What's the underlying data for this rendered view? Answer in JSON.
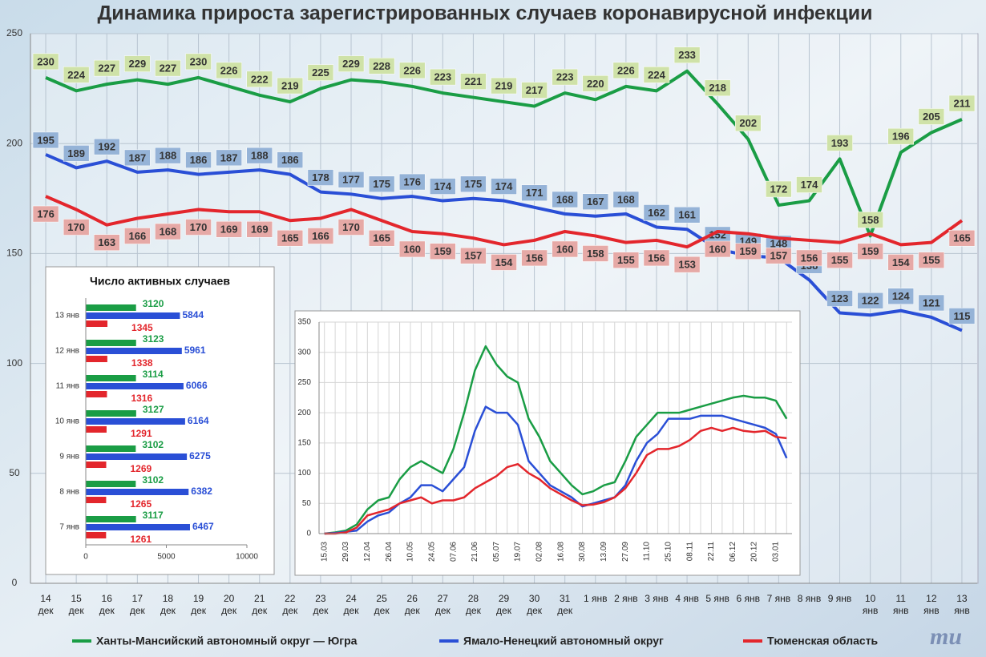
{
  "chart_data": [
    {
      "type": "line",
      "title": "Динамика прироста зарегистрированных случаев коронавирусной инфекции",
      "categories": [
        "14 дек",
        "15 дек",
        "16 дек",
        "17 дек",
        "18 дек",
        "19 дек",
        "20 дек",
        "21 дек",
        "22 дек",
        "23 дек",
        "24 дек",
        "25 дек",
        "26 дек",
        "27 дек",
        "28 дек",
        "29 дек",
        "30 дек",
        "31 дек",
        "1 янв",
        "2 янв",
        "3 янв",
        "4 янв",
        "5 янв",
        "6 янв",
        "7 янв",
        "8 янв",
        "9 янв",
        "10 янв",
        "11 янв",
        "12 янв",
        "13 янв"
      ],
      "series": [
        {
          "name": "Ханты-Мансийский автономный округ — Югра",
          "color": "#1a9d45",
          "values": [
            230,
            224,
            227,
            229,
            227,
            230,
            226,
            222,
            219,
            225,
            229,
            228,
            226,
            223,
            221,
            219,
            217,
            223,
            220,
            226,
            224,
            233,
            218,
            202,
            172,
            174,
            193,
            158,
            196,
            205,
            211
          ]
        },
        {
          "name": "Ямало-Ненецкий автономный округ",
          "color": "#2a4fd6",
          "values": [
            195,
            189,
            192,
            187,
            188,
            186,
            187,
            188,
            186,
            178,
            177,
            175,
            176,
            174,
            175,
            174,
            171,
            168,
            167,
            168,
            162,
            161,
            152,
            149,
            148,
            138,
            123,
            122,
            124,
            121,
            115
          ]
        },
        {
          "name": "Тюменская область",
          "color": "#e3262c",
          "values": [
            176,
            170,
            163,
            166,
            168,
            170,
            169,
            169,
            165,
            166,
            170,
            165,
            160,
            159,
            157,
            154,
            156,
            160,
            158,
            155,
            156,
            153,
            160,
            159,
            157,
            156,
            155,
            159,
            154,
            155,
            165
          ]
        }
      ],
      "ylim": [
        0,
        250
      ],
      "yticks": [
        0,
        50,
        100,
        150,
        200,
        250
      ],
      "grid": true,
      "legend": "bottom",
      "logo": "mu"
    },
    {
      "type": "hbar",
      "title": "Число активных случаев",
      "categories": [
        "13 янв",
        "12 янв",
        "11 янв",
        "10 янв",
        "9 янв",
        "8 янв",
        "7 янв"
      ],
      "series": [
        {
          "color": "#1a9d45",
          "values": [
            3120,
            3123,
            3114,
            3127,
            3102,
            3102,
            3117
          ]
        },
        {
          "color": "#2a4fd6",
          "values": [
            5844,
            5961,
            6066,
            6164,
            6275,
            6382,
            6467
          ]
        },
        {
          "color": "#e3262c",
          "values": [
            1345,
            1338,
            1316,
            1291,
            1269,
            1265,
            1261
          ]
        }
      ],
      "xlim": [
        0,
        10000
      ],
      "xticks": [
        0,
        5000,
        10000
      ]
    },
    {
      "type": "line",
      "categories": [
        "15.03",
        null,
        "29.03",
        null,
        "12.04",
        null,
        "26.04",
        null,
        "10.05",
        null,
        "24.05",
        null,
        "07.06",
        null,
        "21.06",
        null,
        "05.07",
        null,
        "19.07",
        null,
        "02.08",
        null,
        "16.08",
        null,
        "30.08",
        null,
        "13.09",
        null,
        "27.09",
        null,
        "11.10",
        null,
        "25.10",
        null,
        "08.11",
        null,
        "22.11",
        null,
        "06.12",
        null,
        "20.12",
        null,
        "03.01",
        null
      ],
      "series": [
        {
          "color": "#1a9d45",
          "values": [
            0,
            2,
            5,
            15,
            40,
            55,
            60,
            90,
            110,
            120,
            110,
            100,
            140,
            200,
            270,
            310,
            280,
            260,
            250,
            190,
            160,
            120,
            100,
            80,
            65,
            70,
            80,
            85,
            120,
            160,
            180,
            200,
            200,
            200,
            205,
            210,
            215,
            220,
            225,
            228,
            225,
            225,
            220,
            190
          ]
        },
        {
          "color": "#2a4fd6",
          "values": [
            0,
            1,
            3,
            5,
            20,
            30,
            35,
            50,
            60,
            80,
            80,
            70,
            90,
            110,
            170,
            210,
            200,
            200,
            180,
            120,
            100,
            80,
            70,
            60,
            45,
            50,
            55,
            60,
            80,
            120,
            150,
            165,
            190,
            190,
            190,
            195,
            195,
            195,
            190,
            185,
            180,
            175,
            165,
            125
          ]
        },
        {
          "color": "#e3262c",
          "values": [
            0,
            0,
            2,
            10,
            30,
            35,
            40,
            50,
            55,
            60,
            50,
            55,
            55,
            60,
            75,
            85,
            95,
            110,
            115,
            100,
            90,
            75,
            65,
            55,
            47,
            48,
            52,
            60,
            75,
            100,
            130,
            140,
            140,
            145,
            155,
            170,
            175,
            170,
            175,
            170,
            168,
            170,
            160,
            158
          ]
        }
      ],
      "ylim": [
        0,
        350
      ],
      "yticks": [
        0,
        50,
        100,
        150,
        200,
        250,
        300,
        350
      ],
      "grid": true
    }
  ]
}
